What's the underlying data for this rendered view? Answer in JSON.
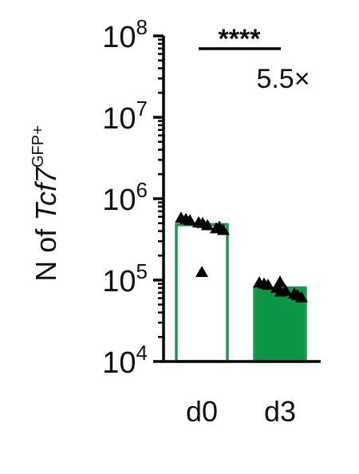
{
  "chart_data": {
    "type": "bar",
    "title": "",
    "ylabel": {
      "prefix": "N of ",
      "gene": "Tcf7",
      "superscript": "GFP+"
    },
    "xlabel": "",
    "yscale": "log",
    "ylim": [
      10000,
      100000000
    ],
    "y_ticks": [
      {
        "value": 10000,
        "base": "10",
        "exp": "4"
      },
      {
        "value": 100000,
        "base": "10",
        "exp": "5"
      },
      {
        "value": 1000000,
        "base": "10",
        "exp": "6"
      },
      {
        "value": 10000000,
        "base": "10",
        "exp": "7"
      },
      {
        "value": 100000000,
        "base": "10",
        "exp": "8"
      }
    ],
    "categories": [
      "d0",
      "d3"
    ],
    "values": [
      480000,
      80000
    ],
    "points": [
      [
        580000,
        540000,
        510000,
        470000,
        430000,
        410000,
        560000,
        500000,
        450000,
        125000
      ],
      [
        93000,
        87000,
        80000,
        74000,
        68000,
        61000,
        90000,
        72000,
        65000,
        95000
      ]
    ],
    "bar_colors": {
      "d0": {
        "fill": "#ffffff",
        "stroke": "#1a9a4c"
      },
      "d3": {
        "fill": "#0c9447",
        "stroke": "#1a9a4c"
      }
    },
    "marker": "triangle",
    "marker_color": "#000000",
    "significance": "****",
    "fold_change": "5.5×",
    "grid": false,
    "legend": "none"
  }
}
